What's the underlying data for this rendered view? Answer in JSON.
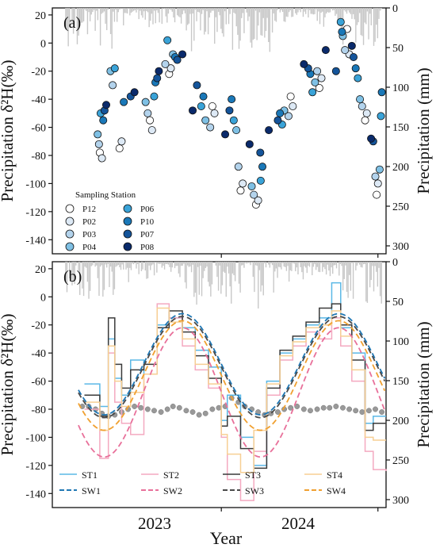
{
  "figure": {
    "xlabel": "Year",
    "x_ticks": [
      "2023",
      "2024"
    ]
  },
  "chart_data": [
    {
      "type": "scatter",
      "panel_label": "(a)",
      "ylabel": "Precipitation δ²H(‰)",
      "y2label": "Precipitation (mm)",
      "ylim": [
        -150,
        25
      ],
      "y_ticks": [
        20,
        0,
        -20,
        -40,
        -60,
        -80,
        -100,
        -120,
        -140
      ],
      "y2lim": [
        0,
        310
      ],
      "y2_inverted": true,
      "y2_ticks": [
        0,
        50,
        100,
        150,
        200,
        250,
        300
      ],
      "x_range": [
        "2022-06-01",
        "2024-07-20"
      ],
      "legend_title": "Sampling Station",
      "legend_position": "bottom-left",
      "colors": {
        "P12": "#ffffff",
        "P02": "#dde9f5",
        "P03": "#b3d3ec",
        "P04": "#7fc0e4",
        "P06": "#3aa3d8",
        "P10": "#1a78b8",
        "P07": "#14549a",
        "P08": "#0a2a6b"
      },
      "series": [
        {
          "name": "P12",
          "x": [
            "2022-09-20",
            "2022-11-05",
            "2023-01-15",
            "2023-03-01",
            "2023-06-10",
            "2023-08-15",
            "2023-09-20",
            "2023-12-10",
            "2024-02-15",
            "2024-04-20",
            "2024-06-01",
            "2024-06-28"
          ],
          "y": [
            -78,
            -75,
            -55,
            -22,
            -45,
            -105,
            -115,
            -38,
            -32,
            10,
            -55,
            -108
          ]
        },
        {
          "name": "P02",
          "x": [
            "2022-09-25",
            "2022-11-10",
            "2023-01-20",
            "2023-03-05",
            "2023-06-15",
            "2023-08-20",
            "2023-09-25",
            "2023-12-15",
            "2024-02-20",
            "2024-04-25",
            "2024-06-05",
            "2024-07-01"
          ],
          "y": [
            -82,
            -70,
            -62,
            -18,
            -50,
            -100,
            -112,
            -45,
            -25,
            -8,
            -50,
            -100
          ]
        },
        {
          "name": "P03",
          "x": [
            "2022-09-18",
            "2022-10-20",
            "2023-01-10",
            "2023-02-20",
            "2023-06-05",
            "2023-08-10",
            "2023-09-15",
            "2023-12-05",
            "2024-02-10",
            "2024-04-15",
            "2024-05-25",
            "2024-06-25"
          ],
          "y": [
            -72,
            -30,
            -50,
            -15,
            -60,
            -88,
            -108,
            -52,
            -20,
            -5,
            -45,
            -95
          ]
        },
        {
          "name": "P04",
          "x": [
            "2022-09-15",
            "2022-10-15",
            "2023-01-05",
            "2023-03-10",
            "2023-05-25",
            "2023-08-05",
            "2023-09-10",
            "2023-11-25",
            "2024-02-05",
            "2024-04-10",
            "2024-05-20",
            "2024-07-05"
          ],
          "y": [
            -65,
            -20,
            -42,
            -8,
            -55,
            -62,
            -102,
            -48,
            -28,
            5,
            -40,
            -90
          ]
        },
        {
          "name": "P06",
          "x": [
            "2022-09-22",
            "2022-10-25",
            "2023-01-25",
            "2023-02-25",
            "2023-05-15",
            "2023-07-30",
            "2023-10-01",
            "2023-11-20",
            "2024-01-30",
            "2024-04-05",
            "2024-05-15",
            "2024-07-08"
          ],
          "y": [
            -50,
            -18,
            -38,
            2,
            -45,
            -55,
            -98,
            -58,
            -35,
            15,
            -25,
            -52
          ]
        },
        {
          "name": "P10",
          "x": [
            "2022-09-28",
            "2022-11-15",
            "2023-01-28",
            "2023-03-15",
            "2023-05-20",
            "2023-07-25",
            "2023-10-05",
            "2023-11-15",
            "2024-01-25",
            "2024-04-08",
            "2024-05-10",
            "2024-07-10"
          ],
          "y": [
            -55,
            -42,
            -28,
            -10,
            -38,
            -40,
            -88,
            -50,
            -22,
            8,
            -18,
            -35
          ]
        },
        {
          "name": "P07",
          "x": [
            "2022-10-01",
            "2022-12-01",
            "2023-02-01",
            "2023-03-20",
            "2023-05-05",
            "2023-07-20",
            "2023-09-30",
            "2023-11-10",
            "2024-01-20",
            "2024-03-25",
            "2024-05-05",
            "2024-06-20"
          ],
          "y": [
            -48,
            -38,
            -25,
            -12,
            -30,
            -48,
            -78,
            -55,
            -18,
            -20,
            -10,
            -70
          ]
        },
        {
          "name": "P08",
          "x": [
            "2022-10-05",
            "2022-12-10",
            "2023-02-05",
            "2023-04-01",
            "2023-04-25",
            "2023-07-10",
            "2023-09-05",
            "2023-10-20",
            "2024-01-10",
            "2024-03-01",
            "2024-05-01",
            "2024-06-15"
          ],
          "y": [
            -44,
            -35,
            -20,
            -8,
            -48,
            -65,
            -72,
            -62,
            -15,
            -5,
            -2,
            -68
          ]
        }
      ]
    },
    {
      "type": "line",
      "panel_label": "(b)",
      "ylabel": "Precipitation δ²H(‰)",
      "y2label": "Precipitation (mm)",
      "ylim": [
        -150,
        25
      ],
      "y_ticks": [
        20,
        0,
        -20,
        -40,
        -60,
        -80,
        -100,
        -120,
        -140
      ],
      "y2lim": [
        0,
        310
      ],
      "y2_inverted": true,
      "y2_ticks": [
        0,
        50,
        100,
        150,
        200,
        250,
        300
      ],
      "legend_position": "bottom",
      "colors": {
        "ST1": "#5ab8e6",
        "ST2": "#f4a9c0",
        "ST3": "#3a3a3a",
        "ST4": "#f7cf94",
        "SW1": "#1f77b4",
        "SW2": "#e8709a",
        "SW3": "#4a4a4a",
        "SW4": "#f0a030",
        "scatter": "#999999"
      },
      "series": [
        {
          "name": "ST1",
          "style": "step",
          "x": [
            "2022-08-15",
            "2022-09-20",
            "2022-10-10",
            "2022-10-25",
            "2022-11-10",
            "2022-12-01",
            "2023-01-01",
            "2023-02-01",
            "2023-03-01",
            "2023-04-01",
            "2023-05-01",
            "2023-06-01",
            "2023-07-01",
            "2023-07-15",
            "2023-08-15",
            "2023-09-15",
            "2023-10-15",
            "2023-11-15",
            "2023-12-15",
            "2024-01-15",
            "2024-02-15",
            "2024-03-15",
            "2024-04-05",
            "2024-05-01",
            "2024-06-01",
            "2024-06-20",
            "2024-07-20"
          ],
          "y": [
            -62,
            -78,
            -30,
            -58,
            -70,
            -45,
            -55,
            -20,
            -15,
            -22,
            -38,
            -50,
            -88,
            -70,
            -100,
            -120,
            -60,
            -40,
            -30,
            -20,
            -15,
            10,
            -22,
            -40,
            -90,
            -85,
            -85
          ]
        },
        {
          "name": "ST2",
          "style": "step",
          "x": [
            "2022-08-15",
            "2022-09-20",
            "2022-10-10",
            "2022-10-25",
            "2022-11-10",
            "2022-12-01",
            "2023-01-01",
            "2023-02-01",
            "2023-03-01",
            "2023-04-01",
            "2023-05-01",
            "2023-06-01",
            "2023-07-01",
            "2023-07-15",
            "2023-08-15",
            "2023-09-15",
            "2023-10-15",
            "2023-11-15",
            "2023-12-15",
            "2024-01-15",
            "2024-02-15",
            "2024-03-15",
            "2024-04-05",
            "2024-05-01",
            "2024-06-01",
            "2024-06-20",
            "2024-07-20"
          ],
          "y": [
            -80,
            -115,
            -40,
            -75,
            -90,
            -98,
            -55,
            -5,
            -15,
            -35,
            -52,
            -65,
            -100,
            -130,
            -145,
            -110,
            -70,
            -45,
            -35,
            -25,
            -30,
            -15,
            -35,
            -60,
            -110,
            -123,
            -124
          ]
        },
        {
          "name": "ST3",
          "style": "step",
          "x": [
            "2022-08-15",
            "2022-09-20",
            "2022-10-10",
            "2022-10-25",
            "2022-11-10",
            "2022-12-01",
            "2023-01-01",
            "2023-02-01",
            "2023-03-01",
            "2023-04-01",
            "2023-05-01",
            "2023-06-01",
            "2023-07-01",
            "2023-07-15",
            "2023-08-15",
            "2023-09-15",
            "2023-10-15",
            "2023-11-15",
            "2023-12-15",
            "2024-01-15",
            "2024-02-15",
            "2024-03-15",
            "2024-04-05",
            "2024-05-01",
            "2024-06-01",
            "2024-06-20",
            "2024-07-20"
          ],
          "y": [
            -70,
            -85,
            -15,
            -48,
            -65,
            -52,
            -48,
            -22,
            -10,
            -25,
            -42,
            -58,
            -92,
            -85,
            -108,
            -122,
            -65,
            -38,
            -28,
            -18,
            -8,
            -5,
            -20,
            -45,
            -95,
            -90,
            -90
          ]
        },
        {
          "name": "ST4",
          "style": "step",
          "x": [
            "2022-08-15",
            "2022-09-20",
            "2022-10-10",
            "2022-10-25",
            "2022-11-10",
            "2022-12-01",
            "2023-01-01",
            "2023-02-01",
            "2023-03-01",
            "2023-04-01",
            "2023-05-01",
            "2023-06-01",
            "2023-07-01",
            "2023-07-15",
            "2023-08-15",
            "2023-09-15",
            "2023-10-15",
            "2023-11-15",
            "2023-12-15",
            "2024-01-15",
            "2024-02-15",
            "2024-03-15",
            "2024-04-05",
            "2024-05-01",
            "2024-06-01",
            "2024-06-20",
            "2024-07-20"
          ],
          "y": [
            -75,
            -95,
            -35,
            -60,
            -78,
            -68,
            -55,
            -8,
            -18,
            -30,
            -48,
            -62,
            -98,
            -112,
            -125,
            -95,
            -62,
            -42,
            -32,
            -22,
            -20,
            -10,
            -28,
            -52,
            -100,
            -102,
            -102
          ]
        },
        {
          "name": "SW1",
          "style": "dashed",
          "period_years": 1.0,
          "mean": -48,
          "amplitude": 36,
          "peak_date": "2023-04-01",
          "x_range": [
            "2022-08-01",
            "2024-07-20"
          ]
        },
        {
          "name": "SW2",
          "style": "dashed",
          "period_years": 1.0,
          "mean": -68,
          "amplitude": 46,
          "peak_date": "2023-04-01",
          "x_range": [
            "2022-08-01",
            "2024-07-20"
          ]
        },
        {
          "name": "SW3",
          "style": "dashed",
          "period_years": 1.0,
          "mean": -50,
          "amplitude": 36,
          "peak_date": "2023-04-01",
          "x_range": [
            "2022-08-01",
            "2024-07-20"
          ]
        },
        {
          "name": "SW4",
          "style": "dashed",
          "period_years": 1.0,
          "mean": -56,
          "amplitude": 39,
          "peak_date": "2023-04-01",
          "x_range": [
            "2022-08-01",
            "2024-07-20"
          ]
        }
      ],
      "scatter_points": {
        "x": [
          "2022-08-10",
          "2022-08-25",
          "2022-09-10",
          "2022-09-25",
          "2022-10-10",
          "2022-10-25",
          "2022-11-10",
          "2022-11-25",
          "2022-12-10",
          "2022-12-25",
          "2023-01-10",
          "2023-01-25",
          "2023-02-10",
          "2023-02-25",
          "2023-03-10",
          "2023-03-25",
          "2023-04-10",
          "2023-04-25",
          "2023-05-10",
          "2023-05-25",
          "2023-06-10",
          "2023-06-25",
          "2023-07-10",
          "2023-07-25",
          "2023-08-10",
          "2023-08-25",
          "2023-09-10",
          "2023-09-25",
          "2023-10-10",
          "2023-10-25",
          "2023-11-10",
          "2023-11-25",
          "2023-12-10",
          "2023-12-25",
          "2024-01-10",
          "2024-01-25",
          "2024-02-10",
          "2024-02-25",
          "2024-03-10",
          "2024-03-25",
          "2024-04-10",
          "2024-04-25",
          "2024-05-10",
          "2024-05-25",
          "2024-06-10",
          "2024-06-25",
          "2024-07-10"
        ],
        "y": [
          -78,
          -78,
          -80,
          -83,
          -85,
          -84,
          -82,
          -80,
          -78,
          -79,
          -80,
          -81,
          -82,
          -80,
          -78,
          -79,
          -81,
          -82,
          -84,
          -83,
          -80,
          -79,
          -78,
          -72,
          -75,
          -78,
          -80,
          -82,
          -84,
          -83,
          -82,
          -80,
          -79,
          -78,
          -80,
          -81,
          -80,
          -79,
          -79,
          -78,
          -79,
          -80,
          -81,
          -82,
          -81,
          -80,
          -82
        ]
      }
    }
  ]
}
